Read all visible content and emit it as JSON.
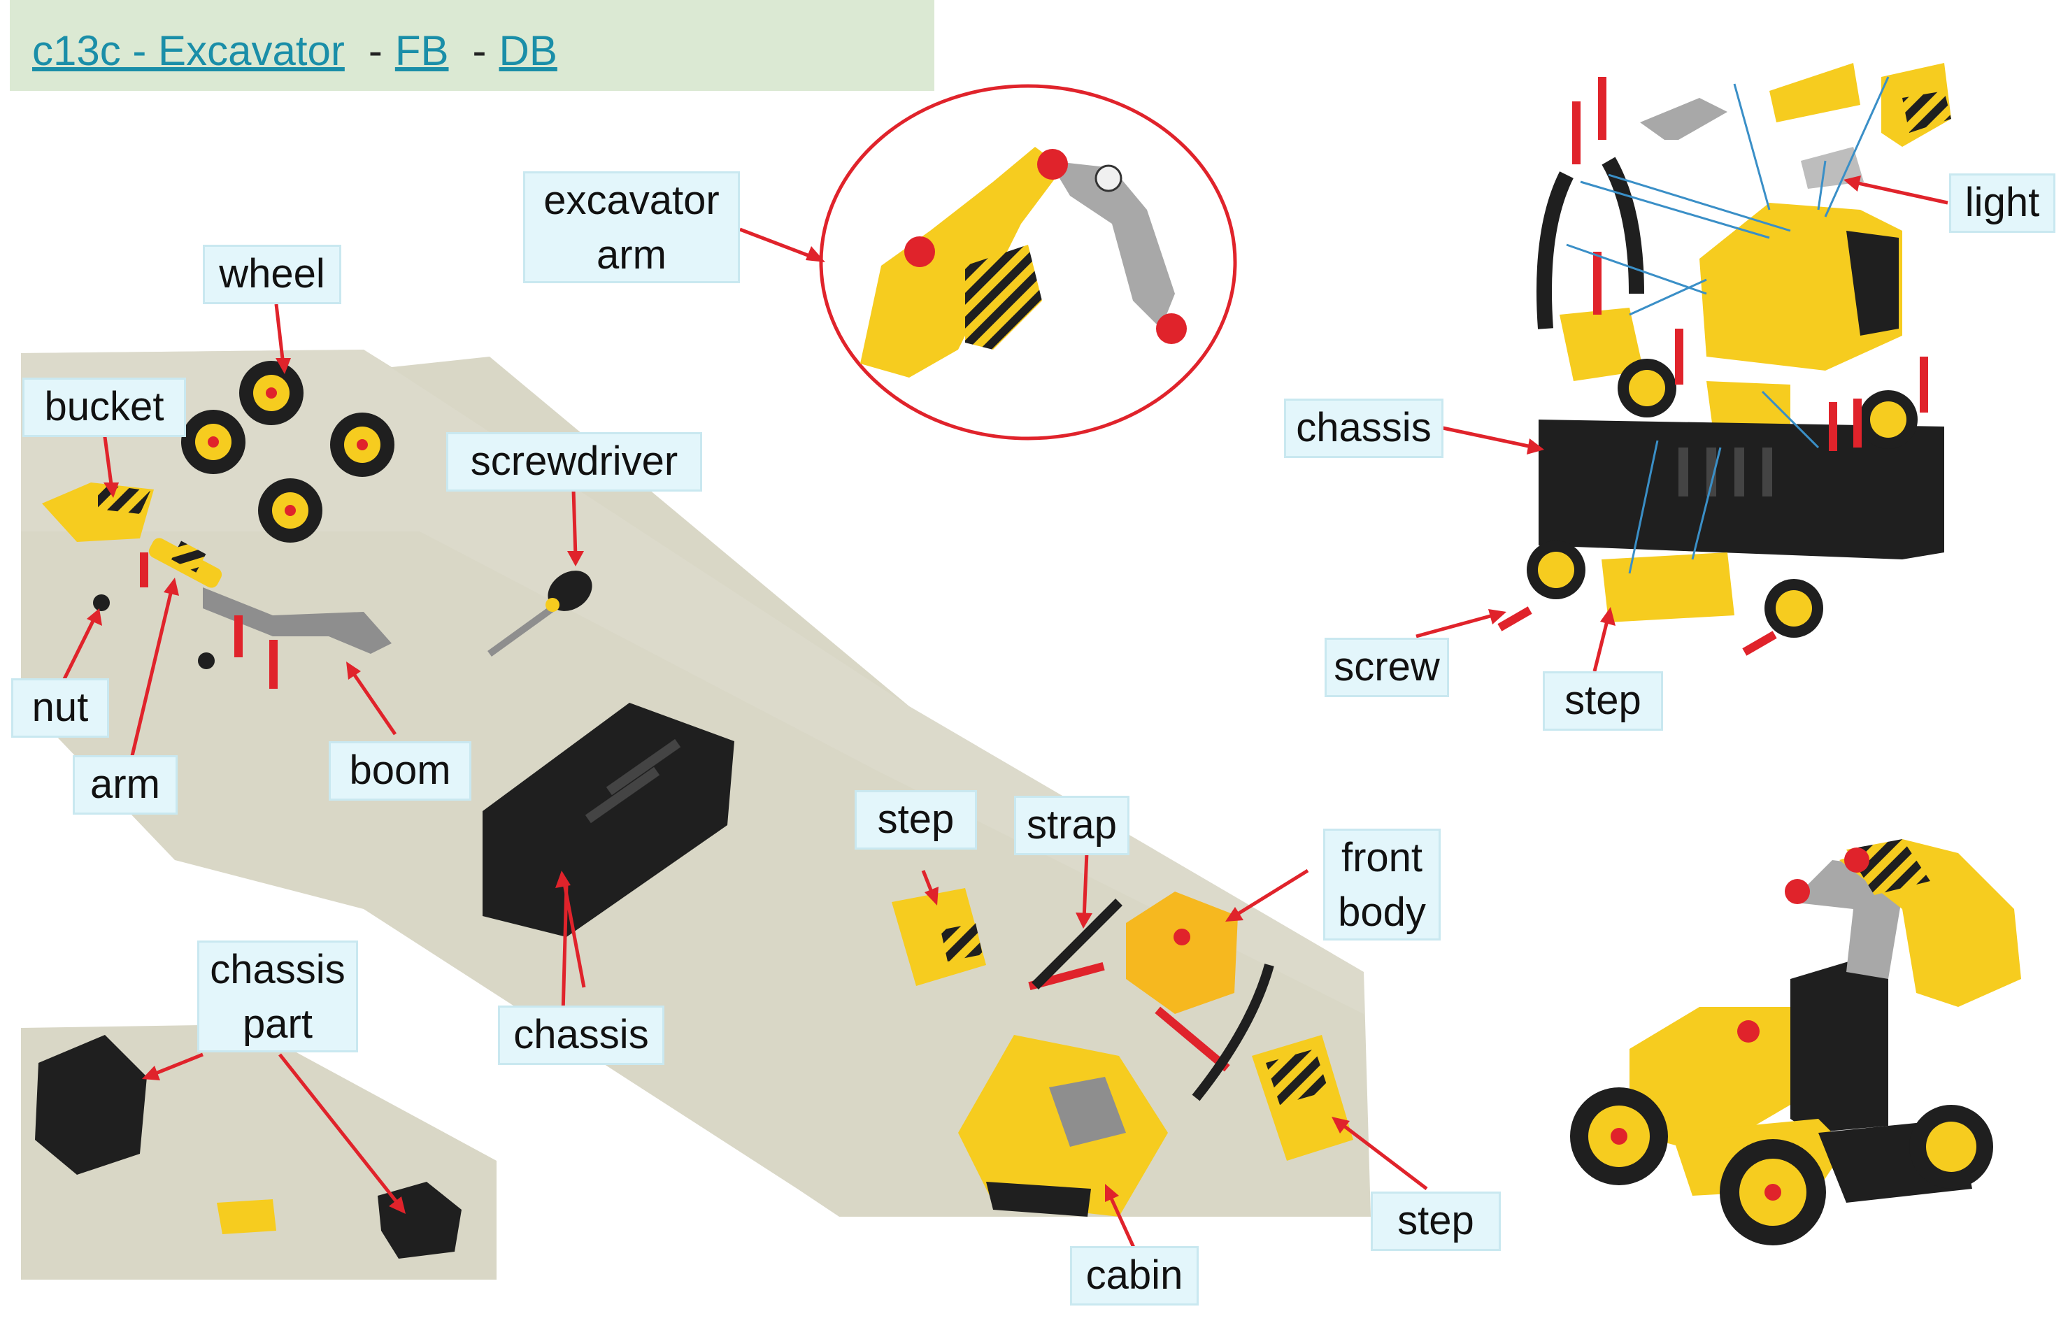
{
  "header": {
    "title_link": "c13c - Excavator",
    "separator1": "-",
    "fb_link": "FB",
    "separator2": "-",
    "db_link": "DB"
  },
  "labels": {
    "excavator_arm": [
      "excavator",
      "arm"
    ],
    "wheel": "wheel",
    "bucket": "bucket",
    "screwdriver": "screwdriver",
    "nut": "nut",
    "arm": "arm",
    "boom": "boom",
    "chassis_left": "chassis",
    "chassis_part": [
      "chassis",
      "part"
    ],
    "step_mid": "step",
    "strap": "strap",
    "front_body": [
      "front",
      "body"
    ],
    "step_low": "step",
    "cabin": "cabin",
    "light": "light",
    "chassis_right": "chassis",
    "screw": "screw",
    "step_right": "step"
  },
  "colors": {
    "header_bg": "#dbe9d3",
    "label_bg": "#e3f6fb",
    "link": "#1a8ea8",
    "arrow": "#e0232b",
    "toy_yellow": "#f6cc1f",
    "toy_black": "#1f1f1f",
    "photo_bg": "#d9d7c6"
  },
  "icons": [
    "excavator-arm-photo",
    "exploded-excavator-diagram",
    "assembled-excavator-photo",
    "parts-photo"
  ]
}
